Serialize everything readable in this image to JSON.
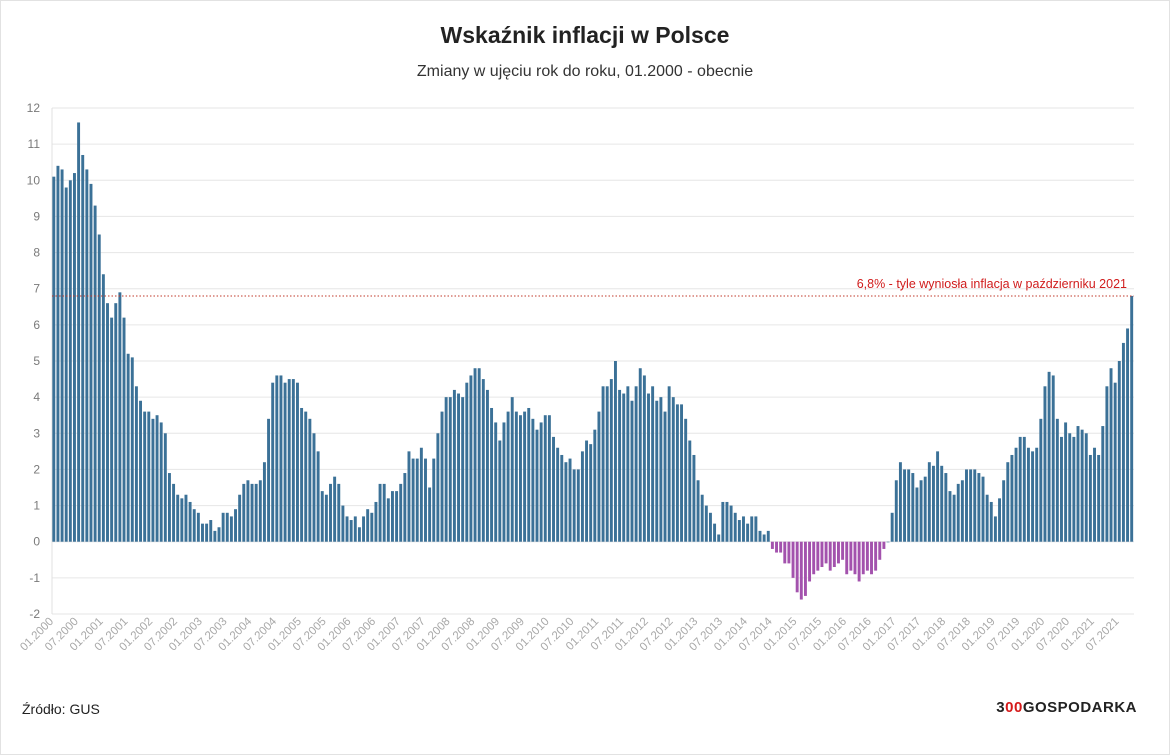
{
  "header": {
    "title": "Wskaźnik inflacji w Polsce",
    "subtitle": "Zmiany w ujęciu rok do roku, 01.2000 - obecnie"
  },
  "footer": {
    "source": "Źródło: GUS",
    "brand_prefix": "3",
    "brand_zeros": "00",
    "brand_suffix": "GOSPODARKA"
  },
  "colors": {
    "positive": "#3b7197",
    "negative": "#a352ad",
    "reference": "#c0392b",
    "annotation": "#d01c1c",
    "grid": "#e6e6e6",
    "axis_text": "#7a7a7a"
  },
  "chart_data": {
    "type": "bar",
    "title": "Wskaźnik inflacji w Polsce",
    "subtitle": "Zmiany w ujęciu rok do roku, 01.2000 - obecnie",
    "xlabel": "",
    "ylabel": "",
    "ylim": [
      -2,
      12
    ],
    "yticks": [
      -2,
      -1,
      0,
      1,
      2,
      3,
      4,
      5,
      6,
      7,
      8,
      9,
      10,
      11,
      12
    ],
    "grid": true,
    "start": "01.2000",
    "end": "10.2021",
    "xtick_labels": [
      "01.2000",
      "07.2000",
      "01.2001",
      "07.2001",
      "01.2002",
      "07.2002",
      "01.2003",
      "07.2003",
      "01.2004",
      "07.2004",
      "01.2005",
      "07.2005",
      "01.2006",
      "07.2006",
      "01.2007",
      "07.2007",
      "01.2008",
      "07.2008",
      "01.2009",
      "07.2009",
      "01.2010",
      "07.2010",
      "01.2011",
      "07.2011",
      "01.2012",
      "07.2012",
      "01.2013",
      "07.2013",
      "01.2014",
      "07.2014",
      "01.2015",
      "07.2015",
      "01.2016",
      "07.2016",
      "01.2017",
      "07.2017",
      "01.2018",
      "07.2018",
      "01.2019",
      "07.2019",
      "01.2020",
      "07.2020",
      "01.2021",
      "07.2021"
    ],
    "reference_line": {
      "value": 6.8,
      "label": "6,8% - tyle wyniosła inflacja w październiku 2021"
    },
    "values": [
      10.1,
      10.4,
      10.3,
      9.8,
      10.0,
      10.2,
      11.6,
      10.7,
      10.3,
      9.9,
      9.3,
      8.5,
      7.4,
      6.6,
      6.2,
      6.6,
      6.9,
      6.2,
      5.2,
      5.1,
      4.3,
      3.9,
      3.6,
      3.6,
      3.4,
      3.5,
      3.3,
      3.0,
      1.9,
      1.6,
      1.3,
      1.2,
      1.3,
      1.1,
      0.9,
      0.8,
      0.5,
      0.5,
      0.6,
      0.3,
      0.4,
      0.8,
      0.8,
      0.7,
      0.9,
      1.3,
      1.6,
      1.7,
      1.6,
      1.6,
      1.7,
      2.2,
      3.4,
      4.4,
      4.6,
      4.6,
      4.4,
      4.5,
      4.5,
      4.4,
      3.7,
      3.6,
      3.4,
      3.0,
      2.5,
      1.4,
      1.3,
      1.6,
      1.8,
      1.6,
      1.0,
      0.7,
      0.6,
      0.7,
      0.4,
      0.7,
      0.9,
      0.8,
      1.1,
      1.6,
      1.6,
      1.2,
      1.4,
      1.4,
      1.6,
      1.9,
      2.5,
      2.3,
      2.3,
      2.6,
      2.3,
      1.5,
      2.3,
      3.0,
      3.6,
      4.0,
      4.0,
      4.2,
      4.1,
      4.0,
      4.4,
      4.6,
      4.8,
      4.8,
      4.5,
      4.2,
      3.7,
      3.3,
      2.8,
      3.3,
      3.6,
      4.0,
      3.6,
      3.5,
      3.6,
      3.7,
      3.4,
      3.1,
      3.3,
      3.5,
      3.5,
      2.9,
      2.6,
      2.4,
      2.2,
      2.3,
      2.0,
      2.0,
      2.5,
      2.8,
      2.7,
      3.1,
      3.6,
      4.3,
      4.3,
      4.5,
      5.0,
      4.2,
      4.1,
      4.3,
      3.9,
      4.3,
      4.8,
      4.6,
      4.1,
      4.3,
      3.9,
      4.0,
      3.6,
      4.3,
      4.0,
      3.8,
      3.8,
      3.4,
      2.8,
      2.4,
      1.7,
      1.3,
      1.0,
      0.8,
      0.5,
      0.2,
      1.1,
      1.1,
      1.0,
      0.8,
      0.6,
      0.7,
      0.5,
      0.7,
      0.7,
      0.3,
      0.2,
      0.3,
      -0.2,
      -0.3,
      -0.3,
      -0.6,
      -0.6,
      -1.0,
      -1.4,
      -1.6,
      -1.5,
      -1.1,
      -0.9,
      -0.8,
      -0.7,
      -0.6,
      -0.8,
      -0.7,
      -0.6,
      -0.5,
      -0.9,
      -0.8,
      -0.9,
      -1.1,
      -0.9,
      -0.8,
      -0.9,
      -0.8,
      -0.5,
      -0.2,
      0.0,
      0.8,
      1.7,
      2.2,
      2.0,
      2.0,
      1.9,
      1.5,
      1.7,
      1.8,
      2.2,
      2.1,
      2.5,
      2.1,
      1.9,
      1.4,
      1.3,
      1.6,
      1.7,
      2.0,
      2.0,
      2.0,
      1.9,
      1.8,
      1.3,
      1.1,
      0.7,
      1.2,
      1.7,
      2.2,
      2.4,
      2.6,
      2.9,
      2.9,
      2.6,
      2.5,
      2.6,
      3.4,
      4.3,
      4.7,
      4.6,
      3.4,
      2.9,
      3.3,
      3.0,
      2.9,
      3.2,
      3.1,
      3.0,
      2.4,
      2.6,
      2.4,
      3.2,
      4.3,
      4.8,
      4.4,
      5.0,
      5.5,
      5.9,
      6.8
    ]
  }
}
